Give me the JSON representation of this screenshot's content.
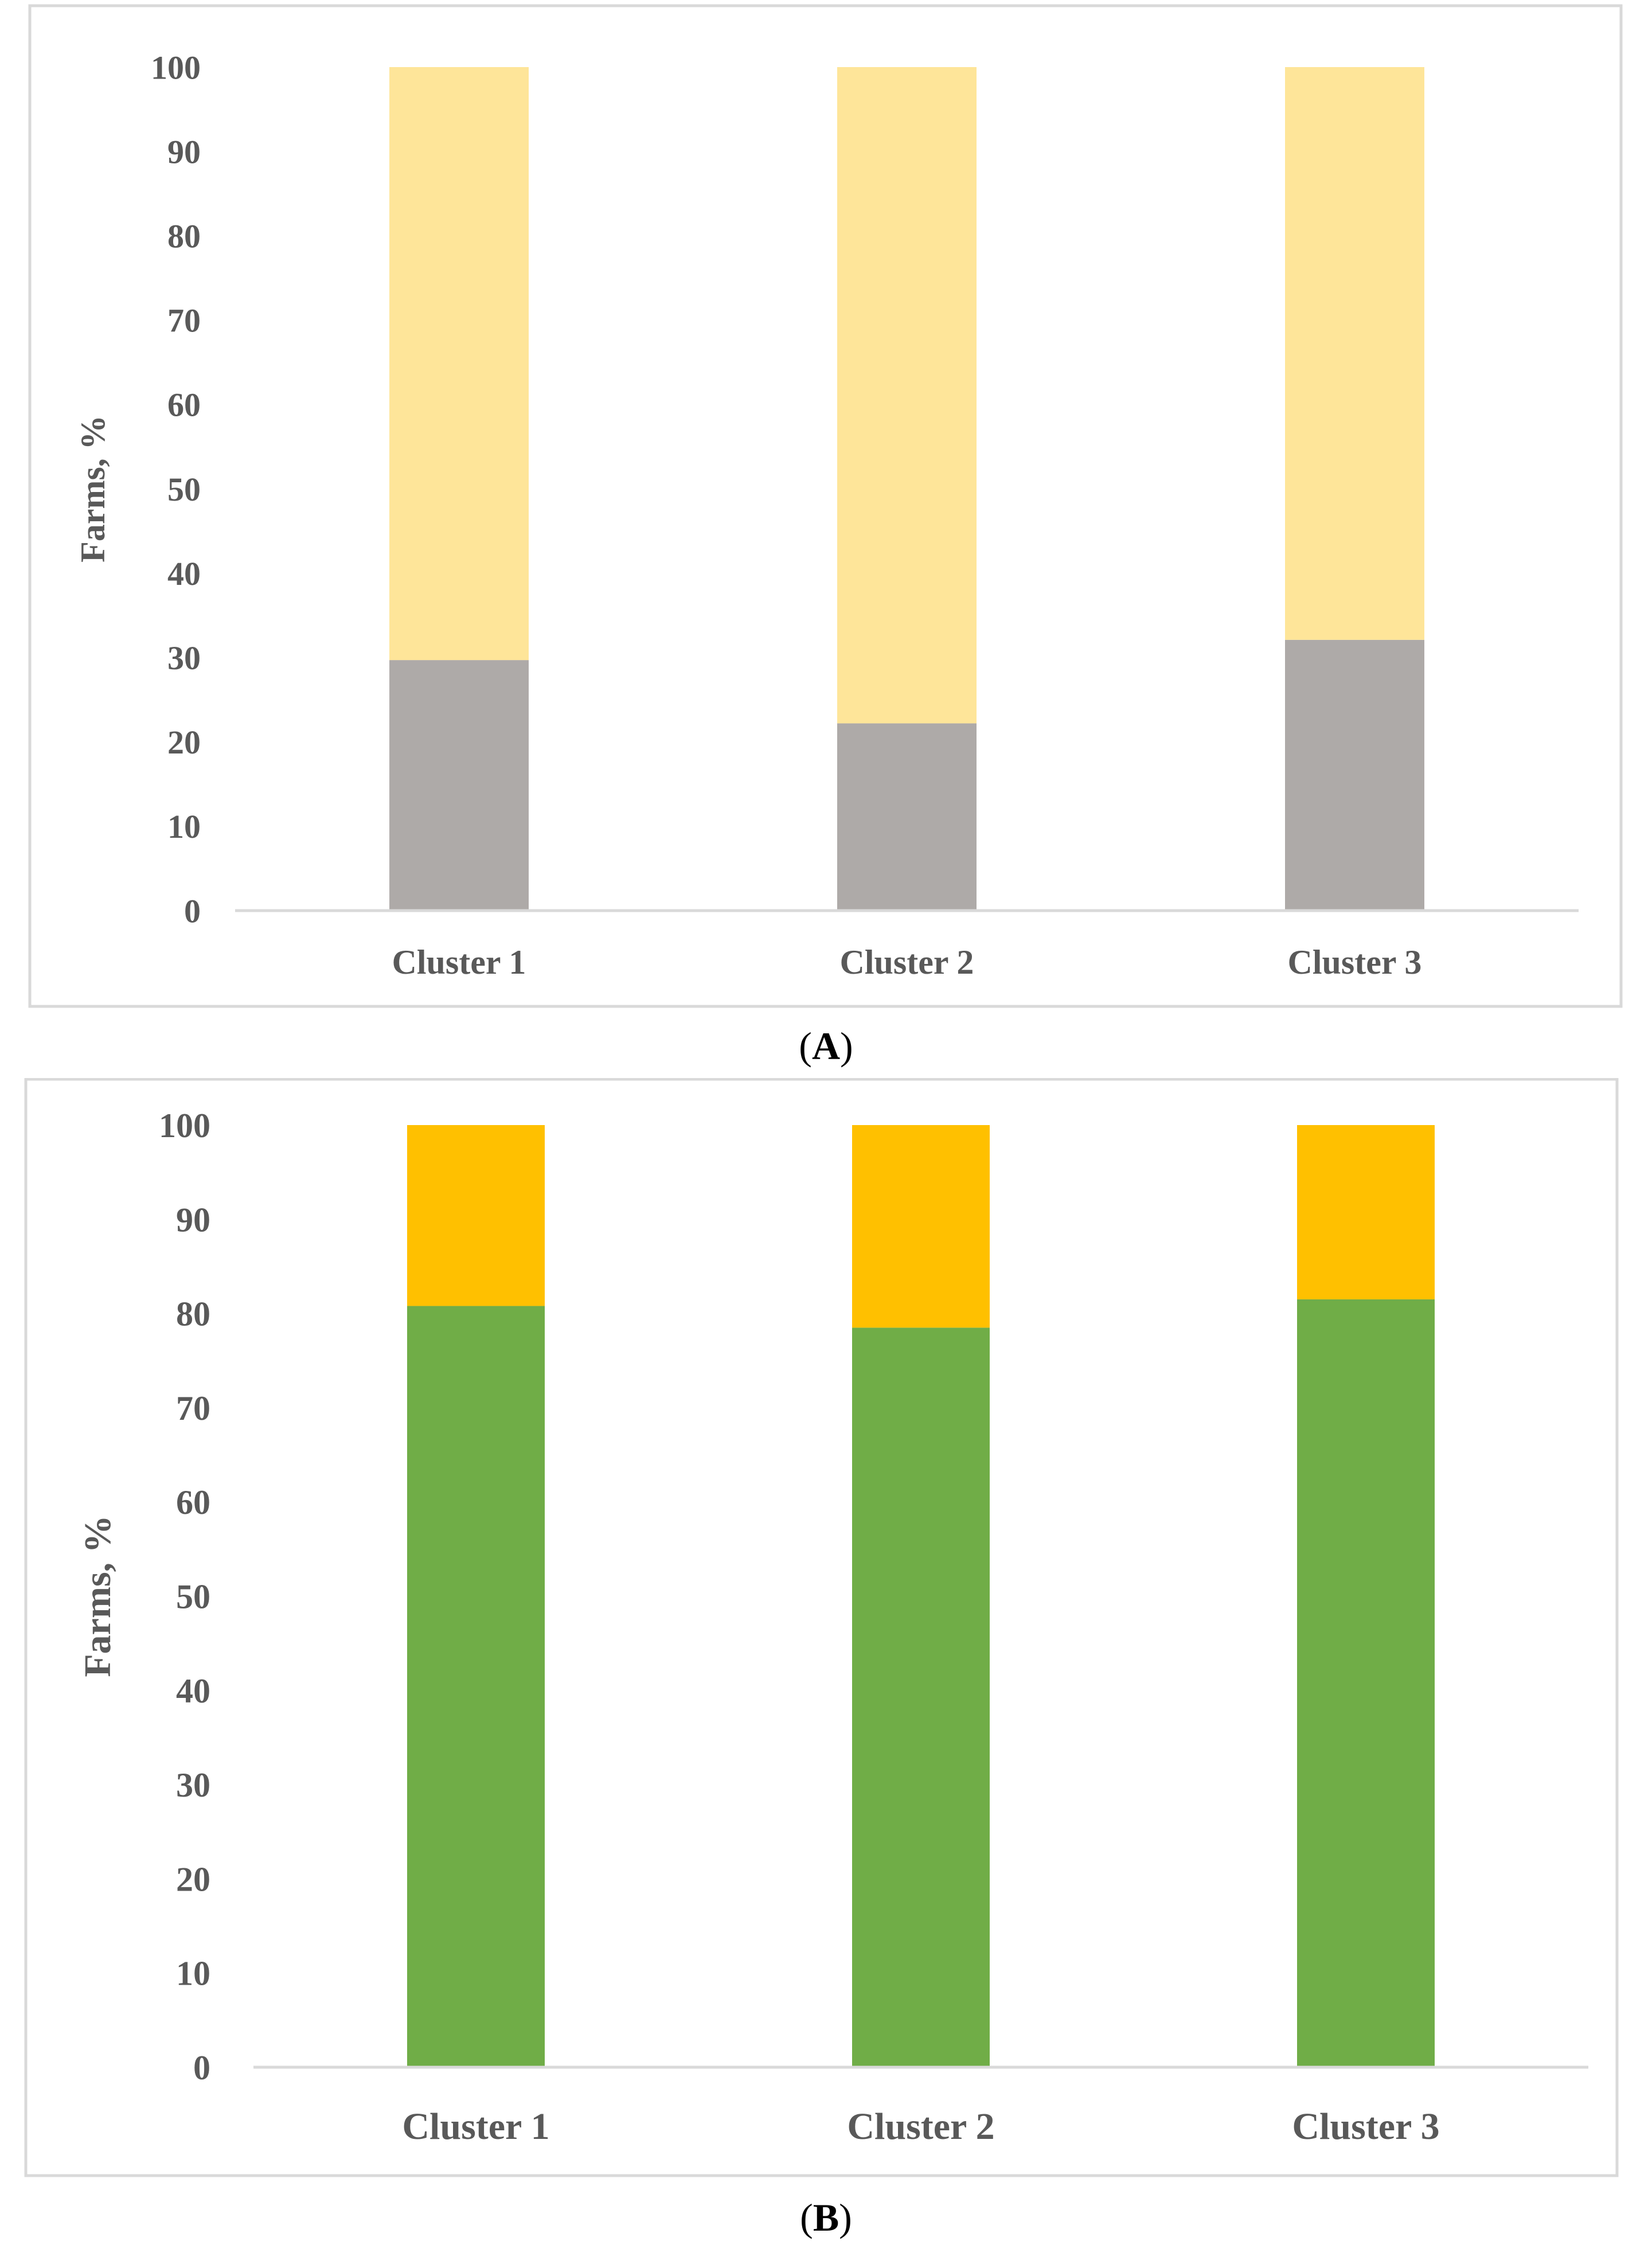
{
  "chart_data": [
    {
      "type": "bar",
      "stacked": true,
      "panel": "A",
      "categories": [
        "Cluster 1",
        "Cluster 2",
        "Cluster 3"
      ],
      "series": [
        {
          "color": "#aeaaa8",
          "values": [
            29.7,
            22.2,
            32.1
          ]
        },
        {
          "color": "#fee599",
          "values": [
            70.3,
            77.8,
            67.9
          ]
        }
      ],
      "ylabel": "Farms, %",
      "ylim": [
        0,
        100
      ],
      "yticks": [
        0,
        10,
        20,
        30,
        40,
        50,
        60,
        70,
        80,
        90,
        100
      ],
      "grid": false,
      "legend": "none",
      "caption": "A"
    },
    {
      "type": "bar",
      "stacked": true,
      "panel": "B",
      "categories": [
        "Cluster 1",
        "Cluster 2",
        "Cluster 3"
      ],
      "series": [
        {
          "color": "#70ad47",
          "values": [
            80.8,
            78.5,
            81.5
          ]
        },
        {
          "color": "#ffc000",
          "values": [
            19.2,
            21.5,
            18.5
          ]
        }
      ],
      "ylabel": "Farms, %",
      "ylim": [
        0,
        100
      ],
      "yticks": [
        0,
        10,
        20,
        30,
        40,
        50,
        60,
        70,
        80,
        90,
        100
      ],
      "grid": false,
      "legend": "none",
      "caption": "B"
    }
  ]
}
